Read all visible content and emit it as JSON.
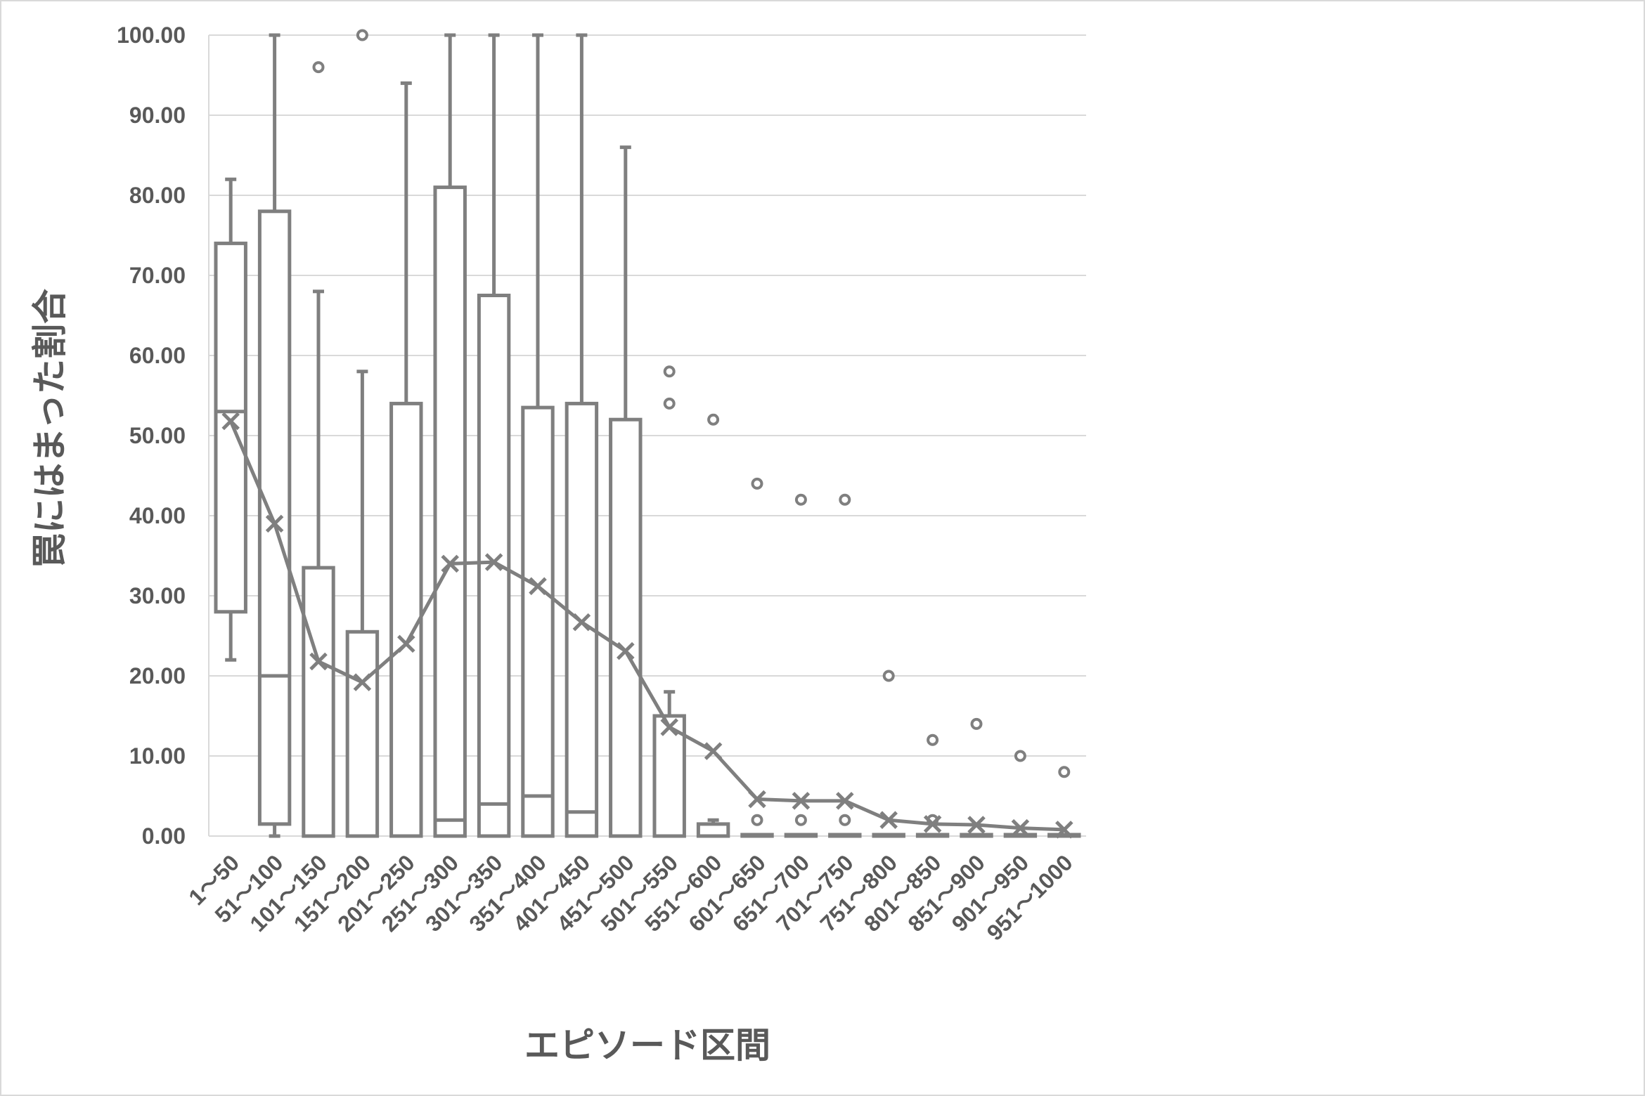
{
  "chart_data": {
    "type": "box",
    "title": "",
    "xlabel": "エピソード区間",
    "ylabel": "罠にはまった割合",
    "ylim": [
      0,
      100
    ],
    "ytick_step": 10,
    "ytick_labels": [
      "0.00",
      "10.00",
      "20.00",
      "30.00",
      "40.00",
      "50.00",
      "60.00",
      "70.00",
      "80.00",
      "90.00",
      "100.00"
    ],
    "grid": true,
    "legend": "none",
    "colors": {
      "stroke": "#7f7f7f",
      "grid": "#d9d9d9",
      "text": "#595959",
      "frame": "#d9d9d9"
    },
    "categories": [
      "1～50",
      "51～100",
      "101～150",
      "151～200",
      "201～250",
      "251～300",
      "301～350",
      "351～400",
      "401～450",
      "451～500",
      "501～550",
      "551～600",
      "601～650",
      "651～700",
      "701～750",
      "751～800",
      "801～850",
      "851～900",
      "901～950",
      "951～1000"
    ],
    "boxes": [
      {
        "min": 22,
        "q1": 28,
        "median": 53,
        "q3": 74,
        "max": 82,
        "mean": 51.8,
        "outliers": []
      },
      {
        "min": 0,
        "q1": 1.5,
        "median": 20,
        "q3": 78,
        "max": 100,
        "mean": 39,
        "outliers": []
      },
      {
        "min": 0,
        "q1": 0,
        "median": 0,
        "q3": 33.5,
        "max": 68,
        "mean": 21.8,
        "outliers": [
          96
        ]
      },
      {
        "min": 0,
        "q1": 0,
        "median": 0,
        "q3": 25.5,
        "max": 58,
        "mean": 19.2,
        "outliers": [
          100
        ]
      },
      {
        "min": 0,
        "q1": 0,
        "median": 0,
        "q3": 54,
        "max": 94,
        "mean": 24,
        "outliers": []
      },
      {
        "min": 0,
        "q1": 0,
        "median": 2,
        "q3": 81,
        "max": 100,
        "mean": 34,
        "outliers": []
      },
      {
        "min": 0,
        "q1": 0,
        "median": 4,
        "q3": 67.5,
        "max": 100,
        "mean": 34.2,
        "outliers": []
      },
      {
        "min": 0,
        "q1": 0,
        "median": 5,
        "q3": 53.5,
        "max": 100,
        "mean": 31.2,
        "outliers": []
      },
      {
        "min": 0,
        "q1": 0,
        "median": 3,
        "q3": 54,
        "max": 100,
        "mean": 26.7,
        "outliers": []
      },
      {
        "min": 0,
        "q1": 0,
        "median": 0,
        "q3": 52,
        "max": 86,
        "mean": 23.1,
        "outliers": []
      },
      {
        "min": 0,
        "q1": 0,
        "median": 0,
        "q3": 15,
        "max": 18,
        "mean": 13.6,
        "outliers": [
          54,
          58
        ]
      },
      {
        "min": 0,
        "q1": 0,
        "median": 0,
        "q3": 1.5,
        "max": 2,
        "mean": 10.6,
        "outliers": [
          52
        ]
      },
      {
        "min": 0,
        "q1": 0,
        "median": 0,
        "q3": 0,
        "max": 0,
        "mean": 4.6,
        "outliers": [
          2,
          44
        ]
      },
      {
        "min": 0,
        "q1": 0,
        "median": 0,
        "q3": 0,
        "max": 0,
        "mean": 4.4,
        "outliers": [
          2,
          42
        ]
      },
      {
        "min": 0,
        "q1": 0,
        "median": 0,
        "q3": 0,
        "max": 0,
        "mean": 4.4,
        "outliers": [
          2,
          42
        ]
      },
      {
        "min": 0,
        "q1": 0,
        "median": 0,
        "q3": 0,
        "max": 0,
        "mean": 2.0,
        "outliers": [
          20
        ]
      },
      {
        "min": 0,
        "q1": 0,
        "median": 0,
        "q3": 0,
        "max": 0,
        "mean": 1.5,
        "outliers": [
          2,
          12
        ]
      },
      {
        "min": 0,
        "q1": 0,
        "median": 0,
        "q3": 0,
        "max": 0,
        "mean": 1.4,
        "outliers": [
          14
        ]
      },
      {
        "min": 0,
        "q1": 0,
        "median": 0,
        "q3": 0,
        "max": 0,
        "mean": 1.0,
        "outliers": [
          10
        ]
      },
      {
        "min": 0,
        "q1": 0,
        "median": 0,
        "q3": 0,
        "max": 0,
        "mean": 0.8,
        "outliers": [
          8
        ]
      }
    ]
  }
}
